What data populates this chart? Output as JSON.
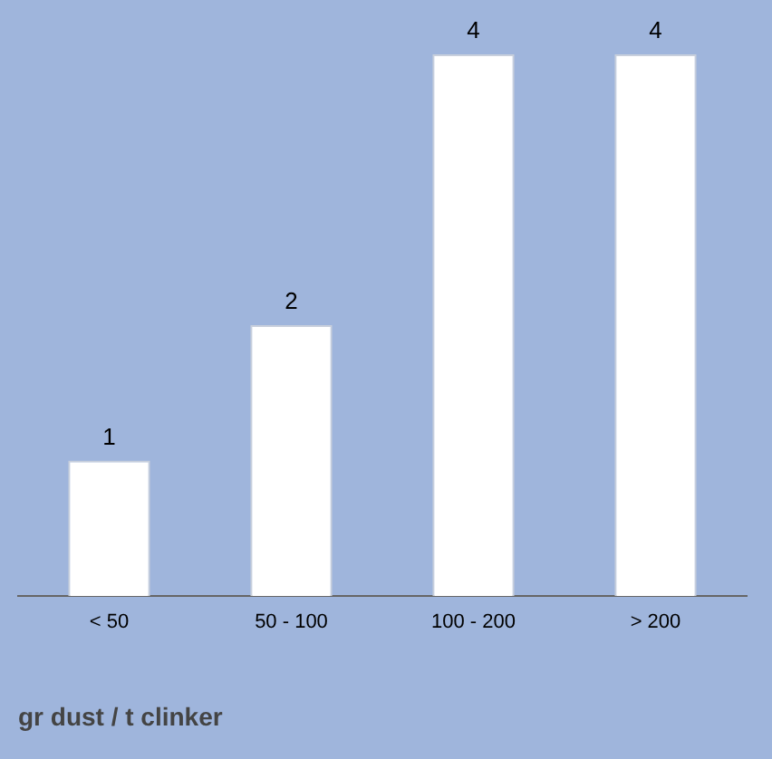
{
  "chart_data": {
    "type": "bar",
    "xlabel": "gr dust / t clinker",
    "categories": [
      "< 50",
      "50 - 100",
      "100 - 200",
      "> 200"
    ],
    "values": [
      1,
      2,
      4,
      4
    ],
    "color": "#ffffff",
    "data_labels": true,
    "grid": false,
    "legend": false
  }
}
